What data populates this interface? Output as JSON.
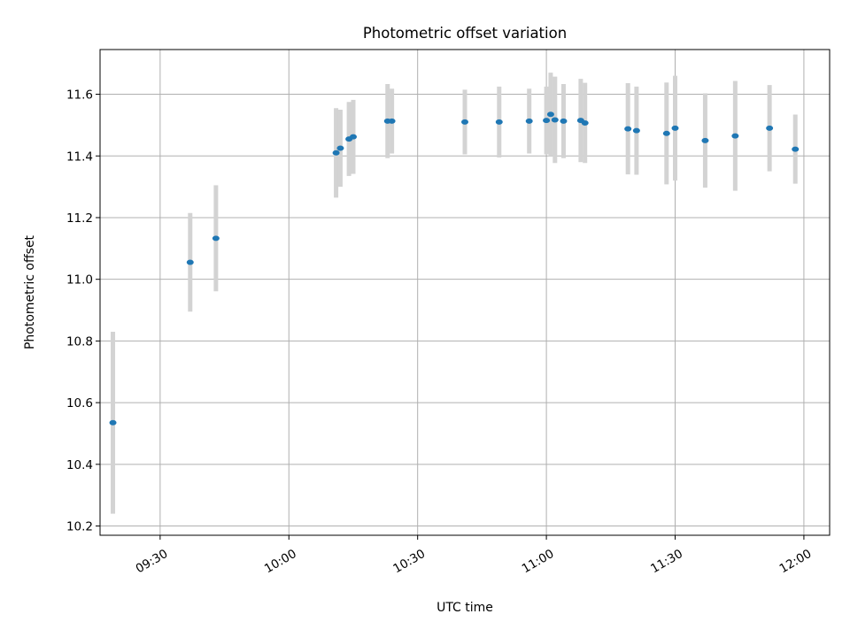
{
  "chart_data": {
    "type": "scatter",
    "title": "Photometric offset variation",
    "xlabel": "UTC time",
    "ylabel": "Photometric offset",
    "x_unit": "UTC time (HH:MM)",
    "xlim": [
      "09:16",
      "12:06"
    ],
    "ylim": [
      10.17,
      11.745
    ],
    "x_ticks": [
      "09:30",
      "10:00",
      "10:30",
      "11:00",
      "11:30",
      "12:00"
    ],
    "y_ticks": [
      10.2,
      10.4,
      10.6,
      10.8,
      11.0,
      11.2,
      11.4,
      11.6
    ],
    "grid": true,
    "colors": {
      "point": "#1f77b4",
      "errorbar": "#d3d3d3",
      "grid": "#b0b0b0"
    },
    "points": [
      {
        "x": "09:19",
        "y": 10.535,
        "err": 0.295
      },
      {
        "x": "09:37",
        "y": 11.055,
        "err": 0.16
      },
      {
        "x": "09:43",
        "y": 11.133,
        "err": 0.172
      },
      {
        "x": "10:11",
        "y": 11.41,
        "err": 0.145
      },
      {
        "x": "10:12",
        "y": 11.425,
        "err": 0.125
      },
      {
        "x": "10:14",
        "y": 11.455,
        "err": 0.12
      },
      {
        "x": "10:15",
        "y": 11.462,
        "err": 0.12
      },
      {
        "x": "10:23",
        "y": 11.513,
        "err": 0.12
      },
      {
        "x": "10:24",
        "y": 11.513,
        "err": 0.105
      },
      {
        "x": "10:41",
        "y": 11.51,
        "err": 0.105
      },
      {
        "x": "10:49",
        "y": 11.51,
        "err": 0.115
      },
      {
        "x": "10:56",
        "y": 11.513,
        "err": 0.105
      },
      {
        "x": "11:00",
        "y": 11.515,
        "err": 0.11
      },
      {
        "x": "11:01",
        "y": 11.535,
        "err": 0.135
      },
      {
        "x": "11:02",
        "y": 11.517,
        "err": 0.14
      },
      {
        "x": "11:04",
        "y": 11.513,
        "err": 0.12
      },
      {
        "x": "11:08",
        "y": 11.515,
        "err": 0.135
      },
      {
        "x": "11:09",
        "y": 11.507,
        "err": 0.13
      },
      {
        "x": "11:19",
        "y": 11.488,
        "err": 0.148
      },
      {
        "x": "11:21",
        "y": 11.482,
        "err": 0.143
      },
      {
        "x": "11:28",
        "y": 11.473,
        "err": 0.165
      },
      {
        "x": "11:30",
        "y": 11.49,
        "err": 0.17
      },
      {
        "x": "11:37",
        "y": 11.45,
        "err": 0.153
      },
      {
        "x": "11:44",
        "y": 11.465,
        "err": 0.178
      },
      {
        "x": "11:52",
        "y": 11.49,
        "err": 0.14
      },
      {
        "x": "11:58",
        "y": 11.422,
        "err": 0.112
      }
    ]
  }
}
